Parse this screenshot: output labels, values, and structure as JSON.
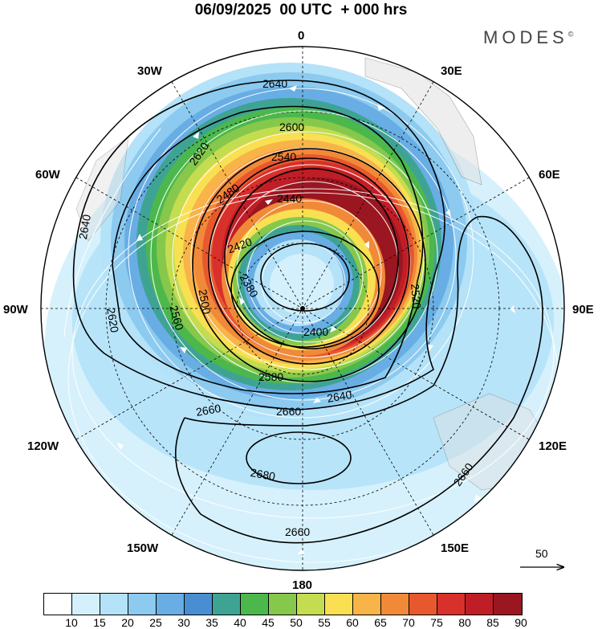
{
  "header": {
    "title": "06/09/2025  00 UTC  + 000 hrs",
    "brand": "MODES"
  },
  "map": {
    "projection": "south-polar-stereographic",
    "longitude_labels": [
      "0",
      "30E",
      "60E",
      "90E",
      "120E",
      "150E",
      "180",
      "150W",
      "120W",
      "90W",
      "60W",
      "30W"
    ],
    "contour_labels": [
      "2640",
      "2600",
      "2620",
      "2540",
      "2480",
      "2440",
      "2420",
      "2380",
      "2400",
      "2500",
      "2560",
      "2580",
      "2520",
      "2660",
      "2680",
      "2640",
      "2640",
      "2620",
      "2660",
      "2660",
      "2660"
    ],
    "vector_reference": "50"
  },
  "colorbar": {
    "colors": [
      "#ffffff",
      "#d4f0fc",
      "#b4e2f8",
      "#8ccaf0",
      "#68aee4",
      "#4a8ed2",
      "#3fa394",
      "#4cb84c",
      "#86c84c",
      "#c4dc50",
      "#f8e052",
      "#f8b448",
      "#f08a38",
      "#e8582e",
      "#d8302a",
      "#c01e26",
      "#9a1620"
    ],
    "tick_labels": [
      "10",
      "15",
      "20",
      "25",
      "30",
      "35",
      "40",
      "45",
      "50",
      "55",
      "60",
      "65",
      "70",
      "75",
      "80",
      "85",
      "90"
    ]
  }
}
